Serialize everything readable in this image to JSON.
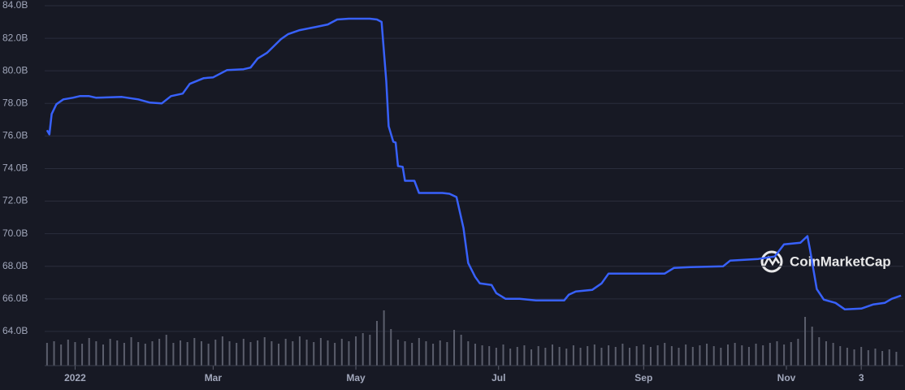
{
  "chart_data": [
    {
      "type": "line",
      "color": "#3861fb",
      "grid": true,
      "watermark": "CoinMarketCap",
      "xlim": [
        -13,
        354
      ],
      "ylim": [
        61.9,
        84
      ],
      "xticks": [
        {
          "value": 0,
          "label": "2022"
        },
        {
          "value": 59,
          "label": "Mar"
        },
        {
          "value": 120,
          "label": "May"
        },
        {
          "value": 181,
          "label": "Jul"
        },
        {
          "value": 243,
          "label": "Sep"
        },
        {
          "value": 304,
          "label": "Nov"
        },
        {
          "value": 336,
          "label": "3"
        }
      ],
      "yticks": [
        {
          "value": 64,
          "label": "64.0B"
        },
        {
          "value": 66,
          "label": "66.0B"
        },
        {
          "value": 68,
          "label": "68.0B"
        },
        {
          "value": 70,
          "label": "70.0B"
        },
        {
          "value": 72,
          "label": "72.0B"
        },
        {
          "value": 74,
          "label": "74.0B"
        },
        {
          "value": 76,
          "label": "76.0B"
        },
        {
          "value": 78,
          "label": "78.0B"
        },
        {
          "value": 80,
          "label": "80.0B"
        },
        {
          "value": 82,
          "label": "82.0B"
        },
        {
          "value": 84,
          "label": "84.0B"
        }
      ],
      "x": [
        -12,
        -11,
        -10,
        -8,
        -5,
        -1,
        2,
        6,
        9,
        20,
        27,
        32,
        37,
        41,
        46,
        49,
        55,
        59,
        61,
        65,
        72,
        75,
        78,
        82,
        88,
        91,
        96,
        103,
        108,
        112,
        117,
        126,
        129,
        131,
        133,
        134,
        136,
        137,
        138,
        140,
        141,
        145,
        147,
        157,
        160,
        163,
        166,
        168,
        171,
        173,
        178,
        180,
        184,
        190,
        197,
        209,
        211,
        214,
        221,
        225,
        228,
        235,
        252,
        256,
        263,
        277,
        280,
        292,
        299,
        303,
        310,
        313,
        314,
        317,
        320,
        325,
        329,
        336,
        341,
        346,
        349,
        353
      ],
      "values": [
        76.35,
        76.1,
        77.35,
        77.95,
        78.25,
        78.35,
        78.45,
        78.45,
        78.35,
        78.4,
        78.25,
        78.05,
        78.0,
        78.45,
        78.6,
        79.2,
        79.55,
        79.6,
        79.75,
        80.05,
        80.1,
        80.2,
        80.75,
        81.1,
        81.95,
        82.25,
        82.5,
        82.7,
        82.85,
        83.15,
        83.2,
        83.2,
        83.15,
        83.0,
        79.35,
        76.6,
        75.65,
        75.6,
        74.15,
        74.1,
        73.25,
        73.25,
        72.5,
        72.5,
        72.45,
        72.25,
        70.35,
        68.2,
        67.35,
        66.95,
        66.85,
        66.35,
        66.0,
        66.0,
        65.9,
        65.9,
        66.25,
        66.45,
        66.55,
        66.95,
        67.55,
        67.55,
        67.55,
        67.9,
        67.95,
        68.0,
        68.35,
        68.45,
        68.6,
        69.35,
        69.45,
        69.85,
        69.1,
        66.6,
        65.95,
        65.75,
        65.35,
        65.4,
        65.65,
        65.75,
        66.0,
        66.2
      ]
    },
    {
      "type": "bar",
      "color": "#5b5e6c",
      "xlim": [
        -13,
        354
      ],
      "ylim": [
        0,
        100
      ],
      "x": [
        -12,
        -9,
        -6,
        -3,
        0,
        3,
        6,
        9,
        12,
        15,
        18,
        21,
        24,
        27,
        30,
        33,
        36,
        39,
        42,
        45,
        48,
        51,
        54,
        57,
        60,
        63,
        66,
        69,
        72,
        75,
        78,
        81,
        84,
        87,
        90,
        93,
        96,
        99,
        102,
        105,
        108,
        111,
        114,
        117,
        120,
        123,
        126,
        129,
        132,
        135,
        138,
        141,
        144,
        147,
        150,
        153,
        156,
        159,
        162,
        165,
        168,
        171,
        174,
        177,
        180,
        183,
        186,
        189,
        192,
        195,
        198,
        201,
        204,
        207,
        210,
        213,
        216,
        219,
        222,
        225,
        228,
        231,
        234,
        237,
        240,
        243,
        246,
        249,
        252,
        255,
        258,
        261,
        264,
        267,
        270,
        273,
        276,
        279,
        282,
        285,
        288,
        291,
        294,
        297,
        300,
        303,
        306,
        309,
        312,
        315,
        318,
        321,
        324,
        327,
        330,
        333,
        336,
        339,
        342,
        345,
        348,
        351
      ],
      "values": [
        28,
        30,
        26,
        32,
        29,
        27,
        34,
        30,
        26,
        33,
        31,
        28,
        35,
        29,
        27,
        30,
        33,
        38,
        28,
        31,
        29,
        34,
        30,
        27,
        32,
        36,
        30,
        28,
        33,
        29,
        31,
        35,
        30,
        27,
        33,
        30,
        36,
        32,
        29,
        34,
        31,
        28,
        33,
        30,
        36,
        40,
        38,
        55,
        68,
        45,
        32,
        30,
        28,
        34,
        30,
        27,
        31,
        29,
        44,
        38,
        30,
        27,
        25,
        24,
        22,
        26,
        21,
        23,
        25,
        20,
        24,
        22,
        26,
        23,
        21,
        25,
        22,
        24,
        26,
        22,
        25,
        23,
        27,
        22,
        24,
        26,
        23,
        25,
        28,
        24,
        22,
        26,
        23,
        25,
        27,
        24,
        22,
        26,
        28,
        25,
        23,
        27,
        25,
        28,
        30,
        26,
        29,
        33,
        60,
        48,
        35,
        30,
        28,
        24,
        22,
        20,
        23,
        19,
        21,
        18,
        20,
        17
      ]
    }
  ]
}
